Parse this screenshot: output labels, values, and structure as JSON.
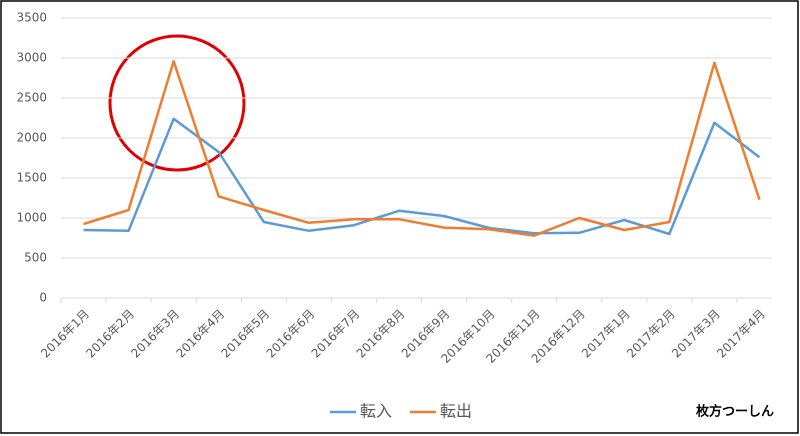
{
  "chart_data": {
    "type": "line",
    "categories": [
      "2016年1月",
      "2016年2月",
      "2016年3月",
      "2016年4月",
      "2016年5月",
      "2016年6月",
      "2016年7月",
      "2016年8月",
      "2016年9月",
      "2016年10月",
      "2016年11月",
      "2016年12月",
      "2017年1月",
      "2017年2月",
      "2017年3月",
      "2017年4月"
    ],
    "series": [
      {
        "name": "転入",
        "color": "#5b9bd5",
        "values": [
          850,
          840,
          2240,
          1825,
          950,
          840,
          910,
          1090,
          1025,
          875,
          810,
          815,
          975,
          800,
          2190,
          1760
        ]
      },
      {
        "name": "転出",
        "color": "#ed7d31",
        "values": [
          925,
          1100,
          2960,
          1270,
          1100,
          940,
          985,
          985,
          880,
          860,
          780,
          1000,
          850,
          950,
          2940,
          1230
        ]
      }
    ],
    "ylim": [
      0,
      3500
    ],
    "yticks": [
      0,
      500,
      1000,
      1500,
      2000,
      2500,
      3000,
      3500
    ],
    "grid": true,
    "legend": "bottom",
    "annotation": "枚方つーしん"
  }
}
